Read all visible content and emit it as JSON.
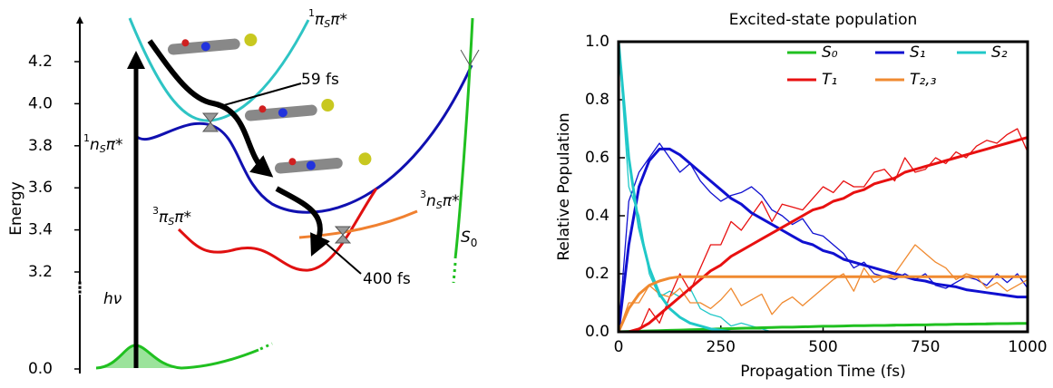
{
  "diagram": {
    "ylabel": "Energy",
    "yticks": [
      {
        "value": 0,
        "label": "0.0"
      },
      3.2,
      3.4,
      3.6,
      3.8,
      {
        "value": 4,
        "label": "4.0"
      },
      4.2
    ],
    "ylim": [
      3.1,
      4.35
    ],
    "states": [
      {
        "spin": "1",
        "orbital": "π",
        "sub": "S",
        "excited": "π*",
        "color": "#2ec4c4"
      },
      {
        "spin": "1",
        "orbital": "n",
        "sub": "S",
        "excited": "π*",
        "color": "#1010b0"
      },
      {
        "spin": "3",
        "orbital": "π",
        "sub": "S",
        "excited": "π*",
        "color": "#e01010"
      },
      {
        "spin": "3",
        "orbital": "n",
        "sub": "S",
        "excited": "π*",
        "color": "#f08030"
      }
    ],
    "ground": {
      "name": "S",
      "sub": "0",
      "color": "#20c020"
    },
    "excitation": "hν",
    "times": [
      "59 fs",
      "400 fs"
    ]
  },
  "chart_data": {
    "type": "line",
    "title": "Excited-state population",
    "xlabel": "Propagation Time (fs)",
    "ylabel": "Relative Population",
    "xlim": [
      0,
      1000
    ],
    "ylim": [
      0,
      1
    ],
    "xticks": [
      0,
      250,
      500,
      750,
      1000
    ],
    "yticks": [
      {
        "value": 0,
        "label": "0.0"
      },
      0.2,
      0.4,
      0.6,
      0.8,
      {
        "value": 1,
        "label": "1.0"
      }
    ],
    "legend": "upper right",
    "x": [
      0,
      25,
      50,
      75,
      100,
      125,
      150,
      175,
      200,
      225,
      250,
      275,
      300,
      325,
      350,
      375,
      400,
      425,
      450,
      475,
      500,
      525,
      550,
      575,
      600,
      625,
      650,
      675,
      700,
      725,
      750,
      775,
      800,
      825,
      850,
      875,
      900,
      925,
      950,
      975,
      1000
    ],
    "series": [
      {
        "name": "S₀",
        "color": "#20c020",
        "values": [
          0,
          0.001,
          0.002,
          0.003,
          0.004,
          0.005,
          0.006,
          0.007,
          0.008,
          0.009,
          0.01,
          0.011,
          0.012,
          0.013,
          0.014,
          0.015,
          0.016,
          0.016,
          0.017,
          0.018,
          0.019,
          0.019,
          0.02,
          0.021,
          0.021,
          0.022,
          0.022,
          0.023,
          0.023,
          0.024,
          0.024,
          0.025,
          0.025,
          0.026,
          0.026,
          0.027,
          0.027,
          0.028,
          0.028,
          0.029,
          0.029
        ],
        "raw": [
          0,
          0,
          0,
          0,
          0,
          0,
          0,
          0,
          0,
          0,
          0.005,
          0.01,
          0.01,
          0.01,
          0.01,
          0.015,
          0.015,
          0.015,
          0.015,
          0.02,
          0.02,
          0.02,
          0.02,
          0.02,
          0.02,
          0.02,
          0.02,
          0.02,
          0.025,
          0.025,
          0.025,
          0.025,
          0.025,
          0.025,
          0.025,
          0.025,
          0.03,
          0.03,
          0.03,
          0.03,
          0.03
        ]
      },
      {
        "name": "S₁",
        "color": "#1010d0",
        "values": [
          0,
          0.3,
          0.5,
          0.59,
          0.63,
          0.63,
          0.61,
          0.58,
          0.55,
          0.52,
          0.49,
          0.46,
          0.44,
          0.41,
          0.39,
          0.37,
          0.35,
          0.33,
          0.31,
          0.3,
          0.28,
          0.27,
          0.25,
          0.24,
          0.23,
          0.22,
          0.21,
          0.2,
          0.19,
          0.18,
          0.175,
          0.165,
          0.16,
          0.155,
          0.145,
          0.14,
          0.135,
          0.13,
          0.125,
          0.12,
          0.12
        ],
        "raw": [
          0,
          0.45,
          0.55,
          0.6,
          0.65,
          0.6,
          0.55,
          0.58,
          0.52,
          0.48,
          0.45,
          0.47,
          0.48,
          0.5,
          0.47,
          0.42,
          0.4,
          0.37,
          0.39,
          0.34,
          0.33,
          0.3,
          0.27,
          0.22,
          0.24,
          0.2,
          0.19,
          0.18,
          0.2,
          0.18,
          0.2,
          0.16,
          0.15,
          0.17,
          0.19,
          0.18,
          0.16,
          0.2,
          0.17,
          0.2,
          0.15
        ]
      },
      {
        "name": "S₂",
        "color": "#20c8c8",
        "values": [
          1,
          0.6,
          0.36,
          0.22,
          0.13,
          0.08,
          0.05,
          0.03,
          0.02,
          0.01,
          0.005,
          0,
          0,
          0,
          0,
          0,
          0,
          0,
          0,
          0,
          0,
          0,
          0,
          0,
          0,
          0,
          0,
          0,
          0,
          0,
          0,
          0,
          0,
          0,
          0,
          0,
          0,
          0,
          0,
          0,
          0
        ],
        "raw": [
          1,
          0.5,
          0.4,
          0.2,
          0.12,
          0.14,
          0.12,
          0.15,
          0.08,
          0.06,
          0.05,
          0.02,
          0.03,
          0.02,
          0.01,
          0,
          0,
          0,
          0,
          0,
          0,
          0,
          0,
          0,
          0,
          0,
          0,
          0,
          0,
          0,
          0,
          0,
          0,
          0,
          0,
          0,
          0,
          0,
          0,
          0,
          0
        ]
      },
      {
        "name": "T₁",
        "color": "#e81010",
        "values": [
          0,
          0,
          0.01,
          0.03,
          0.06,
          0.09,
          0.12,
          0.15,
          0.18,
          0.21,
          0.23,
          0.26,
          0.28,
          0.3,
          0.32,
          0.34,
          0.36,
          0.38,
          0.4,
          0.42,
          0.43,
          0.45,
          0.46,
          0.48,
          0.49,
          0.51,
          0.52,
          0.53,
          0.55,
          0.56,
          0.57,
          0.58,
          0.59,
          0.6,
          0.61,
          0.62,
          0.63,
          0.64,
          0.65,
          0.66,
          0.67
        ],
        "raw": [
          0,
          0,
          0,
          0.08,
          0.03,
          0.12,
          0.2,
          0.14,
          0.22,
          0.3,
          0.3,
          0.38,
          0.35,
          0.4,
          0.45,
          0.38,
          0.44,
          0.43,
          0.42,
          0.46,
          0.5,
          0.48,
          0.52,
          0.5,
          0.5,
          0.55,
          0.56,
          0.52,
          0.6,
          0.55,
          0.56,
          0.6,
          0.58,
          0.62,
          0.6,
          0.64,
          0.66,
          0.65,
          0.68,
          0.7,
          0.62
        ]
      },
      {
        "name": "T₂,₃",
        "color": "#f08a30",
        "values": [
          0,
          0.08,
          0.13,
          0.16,
          0.175,
          0.185,
          0.19,
          0.19,
          0.19,
          0.19,
          0.19,
          0.19,
          0.19,
          0.19,
          0.19,
          0.19,
          0.19,
          0.19,
          0.19,
          0.19,
          0.19,
          0.19,
          0.19,
          0.19,
          0.19,
          0.19,
          0.19,
          0.19,
          0.19,
          0.19,
          0.19,
          0.19,
          0.19,
          0.19,
          0.19,
          0.19,
          0.19,
          0.19,
          0.19,
          0.19,
          0.19
        ],
        "raw": [
          0,
          0.1,
          0.1,
          0.16,
          0.13,
          0.12,
          0.15,
          0.1,
          0.1,
          0.08,
          0.11,
          0.15,
          0.09,
          0.11,
          0.13,
          0.06,
          0.1,
          0.12,
          0.09,
          0.12,
          0.15,
          0.18,
          0.2,
          0.14,
          0.22,
          0.17,
          0.19,
          0.2,
          0.25,
          0.3,
          0.27,
          0.24,
          0.22,
          0.18,
          0.2,
          0.19,
          0.15,
          0.17,
          0.14,
          0.16,
          0.18
        ]
      }
    ]
  }
}
